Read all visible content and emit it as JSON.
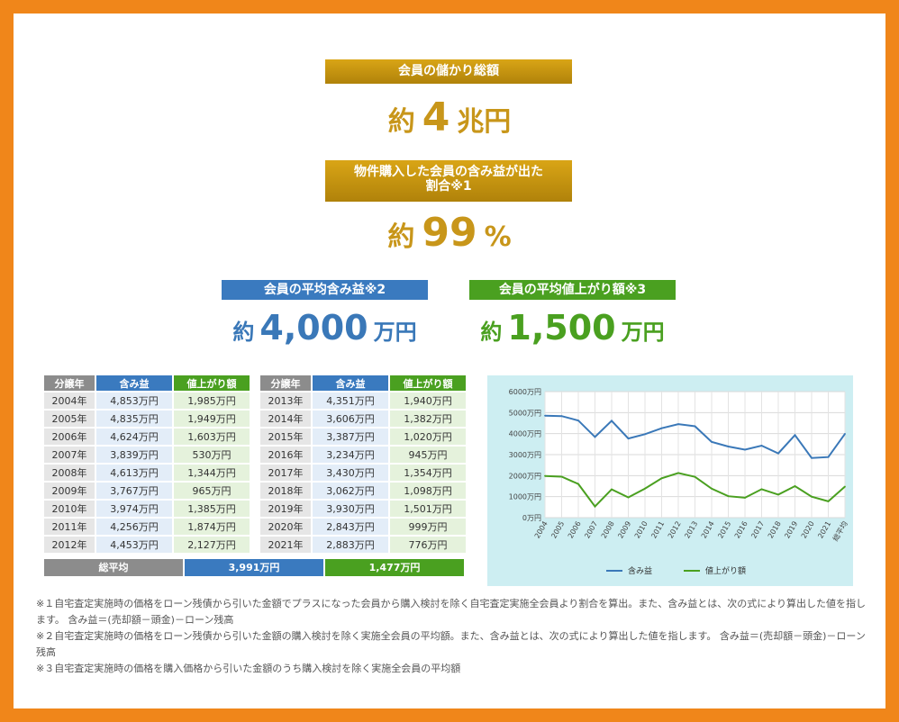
{
  "header": {
    "total_label": "会員の儲かり総額",
    "total_prefix": "約",
    "total_value": "4",
    "total_unit": "兆円",
    "ratio_label_line1": "物件購入した会員の含み益が出た",
    "ratio_label_line2": "割合※1",
    "ratio_prefix": "約",
    "ratio_value": "99",
    "ratio_unit": "%"
  },
  "stats": {
    "avg_gain_label": "会員の平均含み益※2",
    "avg_gain_prefix": "約",
    "avg_gain_value": "4,000",
    "avg_gain_unit": "万円",
    "avg_up_label": "会員の平均値上がり額※3",
    "avg_up_prefix": "約",
    "avg_up_value": "1,500",
    "avg_up_unit": "万円"
  },
  "table": {
    "headers": [
      "分譲年",
      "含み益",
      "値上がり額"
    ],
    "left_rows": [
      [
        "2004年",
        "4,853万円",
        "1,985万円"
      ],
      [
        "2005年",
        "4,835万円",
        "1,949万円"
      ],
      [
        "2006年",
        "4,624万円",
        "1,603万円"
      ],
      [
        "2007年",
        "3,839万円",
        "530万円"
      ],
      [
        "2008年",
        "4,613万円",
        "1,344万円"
      ],
      [
        "2009年",
        "3,767万円",
        "965万円"
      ],
      [
        "2010年",
        "3,974万円",
        "1,385万円"
      ],
      [
        "2011年",
        "4,256万円",
        "1,874万円"
      ],
      [
        "2012年",
        "4,453万円",
        "2,127万円"
      ]
    ],
    "right_rows": [
      [
        "2013年",
        "4,351万円",
        "1,940万円"
      ],
      [
        "2014年",
        "3,606万円",
        "1,382万円"
      ],
      [
        "2015年",
        "3,387万円",
        "1,020万円"
      ],
      [
        "2016年",
        "3,234万円",
        "945万円"
      ],
      [
        "2017年",
        "3,430万円",
        "1,354万円"
      ],
      [
        "2018年",
        "3,062万円",
        "1,098万円"
      ],
      [
        "2019年",
        "3,930万円",
        "1,501万円"
      ],
      [
        "2020年",
        "2,843万円",
        "999万円"
      ],
      [
        "2021年",
        "2,883万円",
        "776万円"
      ]
    ],
    "avg_label": "総平均",
    "avg_gain": "3,991万円",
    "avg_up": "1,477万円"
  },
  "colors": {
    "orange_frame": "#f0861a",
    "gold": "#c8961a",
    "blue": "#3a7abf",
    "green": "#4aa020",
    "chart_bg": "#cdeef2"
  },
  "chart_data": {
    "type": "line",
    "categories": [
      "2004",
      "2005",
      "2006",
      "2007",
      "2008",
      "2009",
      "2010",
      "2011",
      "2012",
      "2013",
      "2014",
      "2015",
      "2016",
      "2017",
      "2018",
      "2019",
      "2020",
      "2021",
      "総平均"
    ],
    "series": [
      {
        "name": "含み益",
        "color": "#3a78b8",
        "values": [
          4853,
          4835,
          4624,
          3839,
          4613,
          3767,
          3974,
          4256,
          4453,
          4351,
          3606,
          3387,
          3234,
          3430,
          3062,
          3930,
          2843,
          2883,
          3991
        ]
      },
      {
        "name": "値上がり額",
        "color": "#4aa020",
        "values": [
          1985,
          1949,
          1603,
          530,
          1344,
          965,
          1385,
          1874,
          2127,
          1940,
          1382,
          1020,
          945,
          1354,
          1098,
          1501,
          999,
          776,
          1477
        ]
      }
    ],
    "ylim": [
      0,
      6000
    ],
    "yticks": [
      "0万円",
      "1000万円",
      "2000万円",
      "3000万円",
      "4000万円",
      "5000万円",
      "6000万円"
    ],
    "grid": true,
    "legend_position": "bottom"
  },
  "notes": [
    "※１自宅査定実施時の価格をローン残債から引いた金額でプラスになった会員から購入検討を除く自宅査定実施全会員より割合を算出。また、含み益とは、次の式により算出した値を指します。 含み益＝(売却額－頭金)－ローン残高",
    "※２自宅査定実施時の価格をローン残債から引いた金額の購入検討を除く実施全会員の平均額。また、含み益とは、次の式により算出した値を指します。 含み益＝(売却額－頭金)－ローン残高",
    "※３自宅査定実施時の価格を購入価格から引いた金額のうち購入検討を除く実施全会員の平均額"
  ]
}
